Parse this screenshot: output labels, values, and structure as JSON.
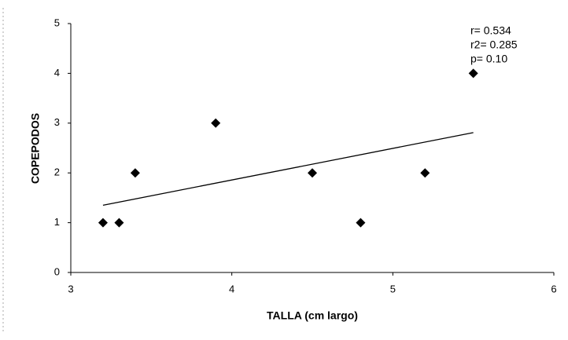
{
  "chart_data": {
    "type": "scatter",
    "x_label": "TALLA (cm largo)",
    "y_label": "COPEPODOS",
    "x": [
      3.2,
      3.3,
      3.4,
      3.9,
      4.5,
      4.8,
      5.2,
      5.5
    ],
    "values": [
      1,
      1,
      2,
      3,
      2,
      1,
      2,
      4
    ],
    "color": "#000000",
    "trendline": {
      "x": [
        3.2,
        5.5
      ],
      "values": [
        1.35,
        2.81
      ],
      "color": "#000000"
    },
    "annotations": [
      "r= 0.534",
      "r2= 0.285",
      "p= 0.10"
    ],
    "xlim": [
      3,
      6
    ],
    "xticks": [
      3,
      4,
      5,
      6
    ],
    "ylim": [
      0,
      5
    ],
    "yticks": [
      0,
      1,
      2,
      3,
      4,
      5
    ],
    "grid": false
  }
}
